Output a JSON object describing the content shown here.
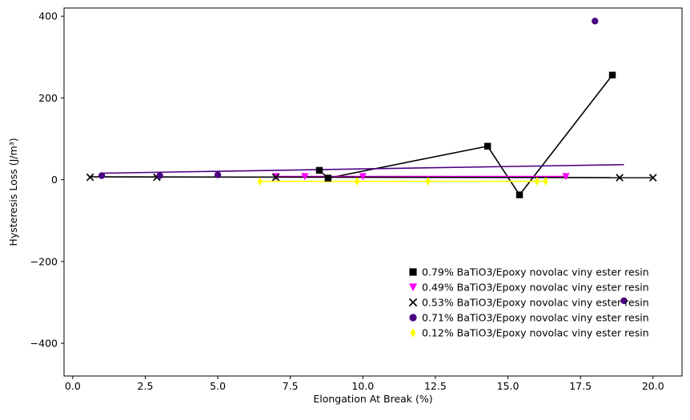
{
  "chart_data": {
    "type": "scatter",
    "title": "",
    "xlabel": "Elongation At Break (%)",
    "ylabel": "Hysteresis Loss (J/m³)",
    "xlim": [
      -0.3,
      21.0
    ],
    "ylim": [
      -480,
      420
    ],
    "xticks": [
      0.0,
      2.5,
      5.0,
      7.5,
      10.0,
      12.5,
      15.0,
      17.5,
      20.0
    ],
    "xtick_labels": [
      "0.0",
      "2.5",
      "5.0",
      "7.5",
      "10.0",
      "12.5",
      "15.0",
      "17.5",
      "20.0"
    ],
    "yticks": [
      -400,
      -200,
      0,
      200,
      400
    ],
    "ytick_labels": [
      "−400",
      "−200",
      "0",
      "200",
      "400"
    ],
    "grid": false,
    "legend_position": "lower-right",
    "series": [
      {
        "name": "0.79% BaTiO3/Epoxy novolac viny ester resin",
        "marker": "square",
        "color": "#000000",
        "points": [
          [
            8.5,
            23
          ],
          [
            8.8,
            4
          ],
          [
            14.3,
            82
          ],
          [
            15.4,
            -37
          ],
          [
            18.6,
            256
          ]
        ],
        "line": {
          "color": "#000000",
          "points": [
            [
              8.5,
              23
            ],
            [
              8.8,
              4
            ],
            [
              14.3,
              82
            ],
            [
              15.4,
              -37
            ],
            [
              18.6,
              256
            ]
          ]
        }
      },
      {
        "name": "0.49% BaTiO3/Epoxy novolac viny ester resin",
        "marker": "triangle-down",
        "color": "#ff00ff",
        "points": [
          [
            7.0,
            8
          ],
          [
            8.0,
            8
          ],
          [
            10.0,
            8
          ],
          [
            17.0,
            8
          ]
        ],
        "line": {
          "color": "#ff00ff",
          "points": [
            [
              7.0,
              8
            ],
            [
              17.0,
              8
            ]
          ]
        }
      },
      {
        "name": "0.53% BaTiO3/Epoxy novolac viny ester resin",
        "marker": "x",
        "color": "#000000",
        "points": [
          [
            0.6,
            6
          ],
          [
            2.9,
            6
          ],
          [
            7.0,
            6
          ],
          [
            18.85,
            5
          ],
          [
            20.0,
            5
          ]
        ],
        "line": {
          "color": "#000000",
          "points": [
            [
              0.6,
              7
            ],
            [
              20.0,
              5
            ]
          ]
        }
      },
      {
        "name": "0.71% BaTiO3/Epoxy novolac viny ester resin",
        "marker": "circle",
        "color": "#4b0082",
        "points": [
          [
            1.0,
            10
          ],
          [
            3.0,
            10
          ],
          [
            5.0,
            12
          ],
          [
            18.0,
            388
          ],
          [
            19.0,
            -296
          ]
        ],
        "line": {
          "color": "#4b0082",
          "points": [
            [
              1.0,
              16
            ],
            [
              19.0,
              37
            ]
          ]
        }
      },
      {
        "name": "0.12% BaTiO3/Epoxy novolac viny ester resin",
        "marker": "diamond",
        "color": "#ffff00",
        "points": [
          [
            6.45,
            -4
          ],
          [
            9.8,
            -4
          ],
          [
            12.25,
            -4
          ],
          [
            16.0,
            -4
          ],
          [
            16.3,
            -4
          ]
        ],
        "line": {
          "color": "#ffff00",
          "points": [
            [
              6.45,
              -4
            ],
            [
              16.3,
              -4
            ]
          ]
        }
      }
    ]
  }
}
